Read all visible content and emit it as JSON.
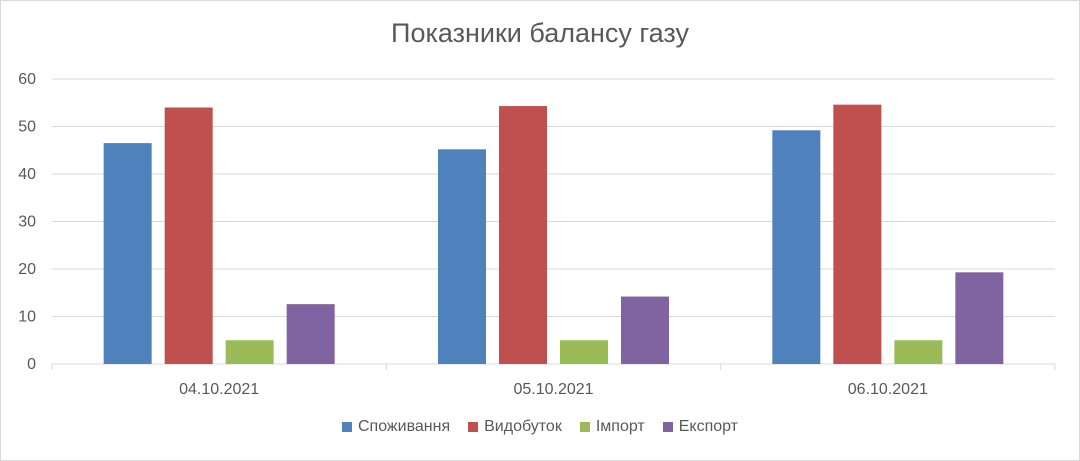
{
  "chart_data": {
    "type": "bar",
    "title": "Показники балансу газу",
    "categories": [
      "04.10.2021",
      "05.10.2021",
      "06.10.2021"
    ],
    "series": [
      {
        "name": "Споживання",
        "color": "#4f81bd",
        "values": [
          46.5,
          45.2,
          49.2
        ]
      },
      {
        "name": "Видобуток",
        "color": "#c0504d",
        "values": [
          54.0,
          54.3,
          54.6
        ]
      },
      {
        "name": "Імпорт",
        "color": "#9bbb59",
        "values": [
          5.0,
          5.0,
          5.0
        ]
      },
      {
        "name": "Експорт",
        "color": "#8064a2",
        "values": [
          12.6,
          14.2,
          19.3
        ]
      }
    ],
    "ylim": [
      0,
      60
    ],
    "yticks": [
      0,
      10,
      20,
      30,
      40,
      50,
      60
    ],
    "grid": true,
    "legend_position": "bottom"
  }
}
